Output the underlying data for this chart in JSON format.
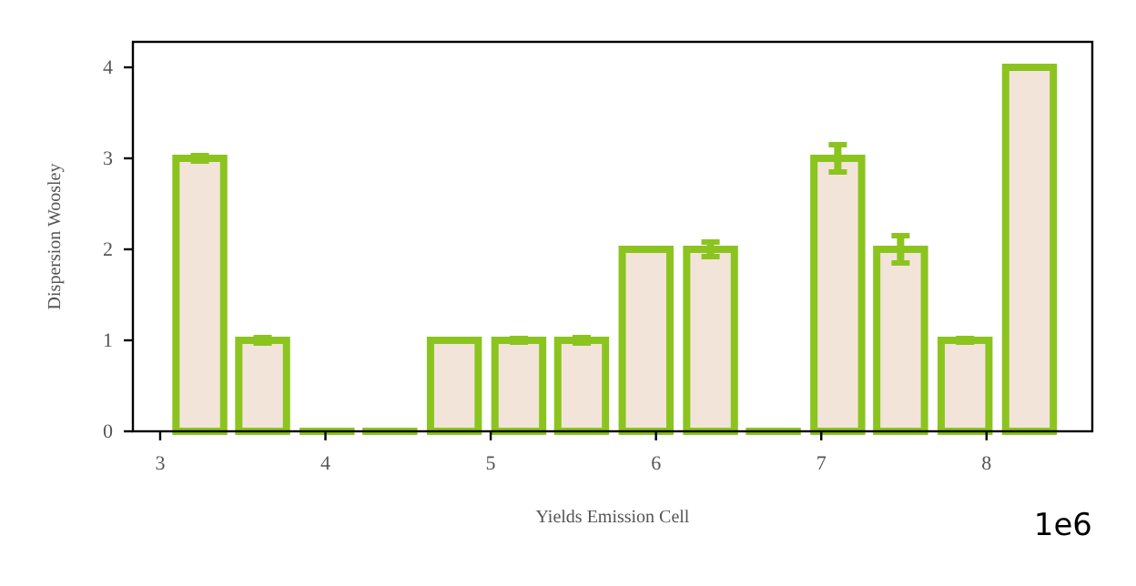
{
  "chart_data": {
    "type": "bar",
    "xlabel": "Yields Emission Cell",
    "ylabel": "Dispersion Woosley",
    "x": [
      3.24,
      3.62,
      4.01,
      4.39,
      4.78,
      5.17,
      5.55,
      5.94,
      6.33,
      6.71,
      7.1,
      7.48,
      7.87,
      8.26
    ],
    "values": [
      3,
      1,
      0,
      0,
      1,
      1,
      1,
      2,
      2,
      0,
      3,
      2,
      1,
      4
    ],
    "errors": [
      0.03,
      0.03,
      null,
      null,
      null,
      0.02,
      0.03,
      null,
      0.08,
      null,
      0.15,
      0.15,
      0.02,
      null
    ],
    "color": "#8bc41f",
    "xlim": [
      2.835,
      8.64
    ],
    "xticks": [
      3,
      4,
      5,
      6,
      7,
      8
    ],
    "ylim": [
      0,
      4.28
    ],
    "yticks": [
      0,
      1,
      2,
      3,
      4
    ],
    "annotations": [
      "1e6"
    ],
    "grid": false
  }
}
